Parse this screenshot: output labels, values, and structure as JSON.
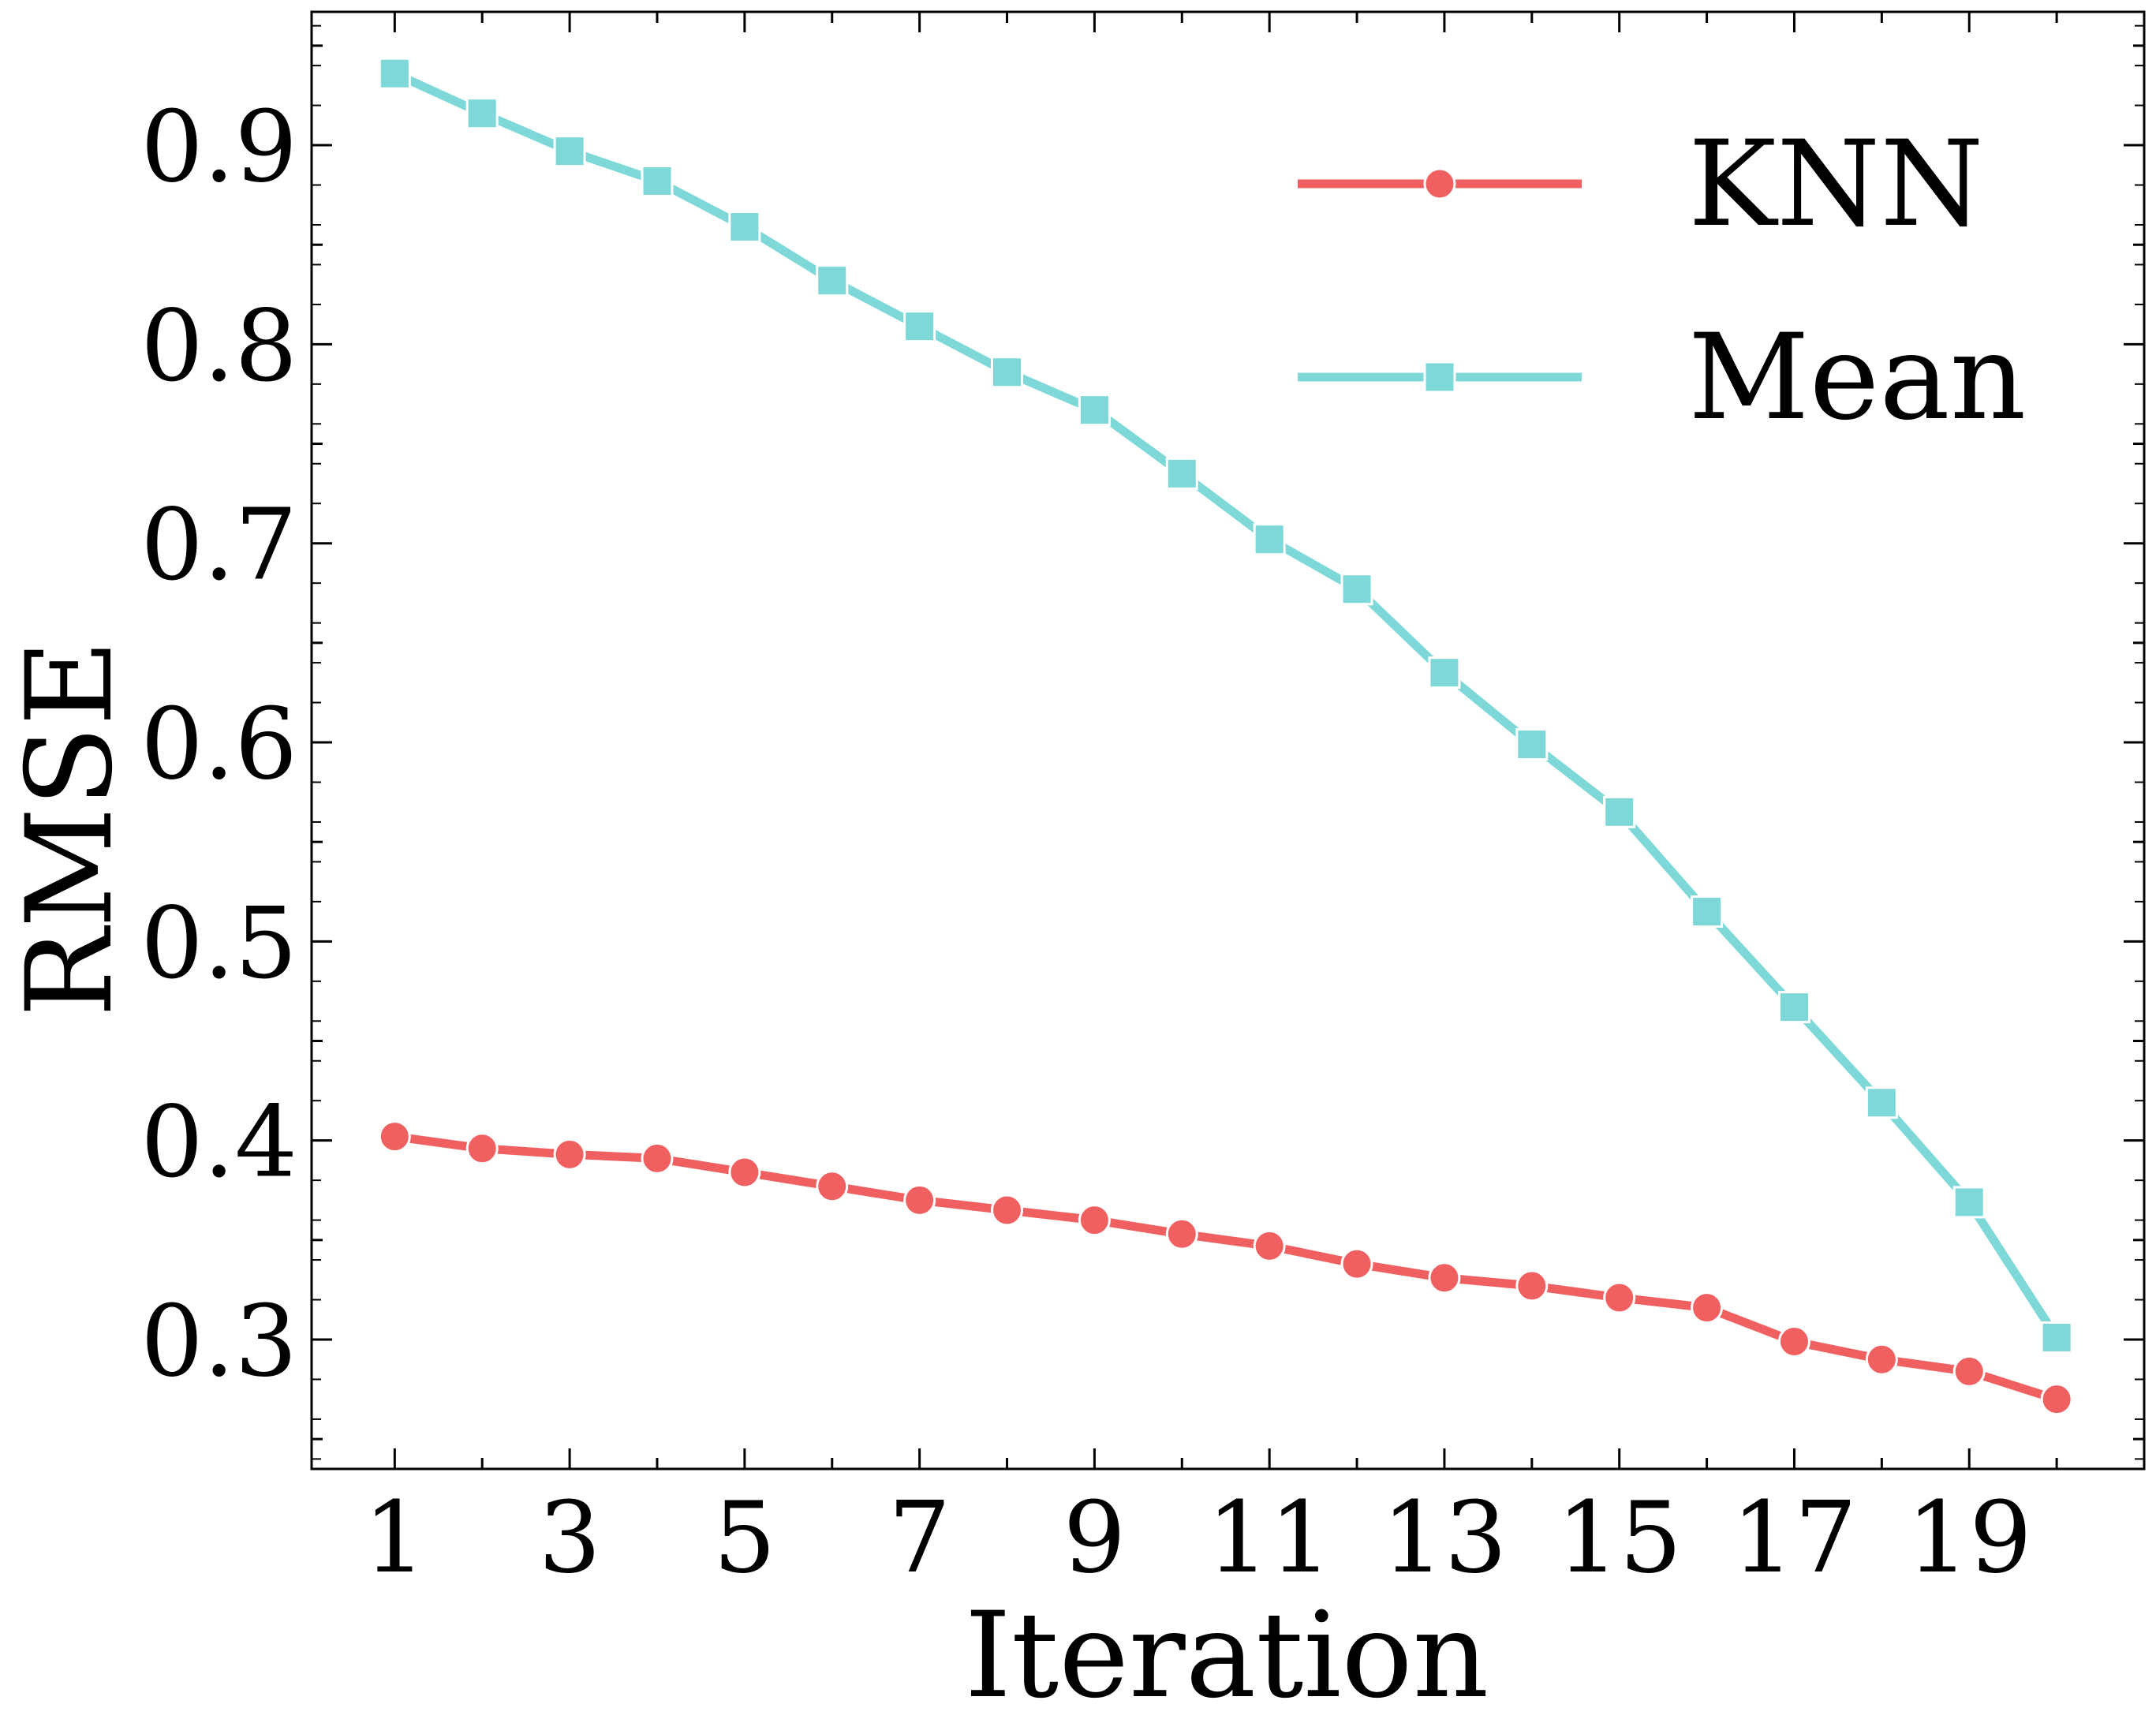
{
  "chart_data": {
    "type": "line",
    "title": "",
    "xlabel": "Iteration",
    "ylabel": "RMSE",
    "x": [
      1,
      2,
      3,
      4,
      5,
      6,
      7,
      8,
      9,
      10,
      11,
      12,
      13,
      14,
      15,
      16,
      17,
      18,
      19,
      20
    ],
    "xticks": [
      1,
      3,
      5,
      7,
      9,
      11,
      13,
      15,
      17,
      19
    ],
    "xtick_labels": [
      "1",
      "3",
      "5",
      "7",
      "9",
      "11",
      "13",
      "15",
      "17",
      "19"
    ],
    "xlim": [
      0.05,
      21.0
    ],
    "yticks": [
      0.3,
      0.4,
      0.5,
      0.6,
      0.7,
      0.8,
      0.9
    ],
    "ytick_labels": [
      "0.3",
      "0.4",
      "0.5",
      "0.6",
      "0.7",
      "0.8",
      "0.9"
    ],
    "ylim": [
      0.235,
      0.967
    ],
    "grid": false,
    "legend_position": "top-right",
    "series": [
      {
        "name": "KNN",
        "color": "#f06060",
        "marker": "circle",
        "values": [
          0.402,
          0.396,
          0.393,
          0.391,
          0.384,
          0.377,
          0.37,
          0.365,
          0.36,
          0.353,
          0.347,
          0.338,
          0.331,
          0.327,
          0.321,
          0.316,
          0.299,
          0.29,
          0.284,
          0.27
        ]
      },
      {
        "name": "Mean",
        "color": "#7fd8d8",
        "marker": "square",
        "values": [
          0.936,
          0.916,
          0.897,
          0.882,
          0.859,
          0.832,
          0.809,
          0.786,
          0.767,
          0.735,
          0.702,
          0.677,
          0.635,
          0.599,
          0.565,
          0.515,
          0.467,
          0.419,
          0.369,
          0.301
        ]
      }
    ]
  }
}
